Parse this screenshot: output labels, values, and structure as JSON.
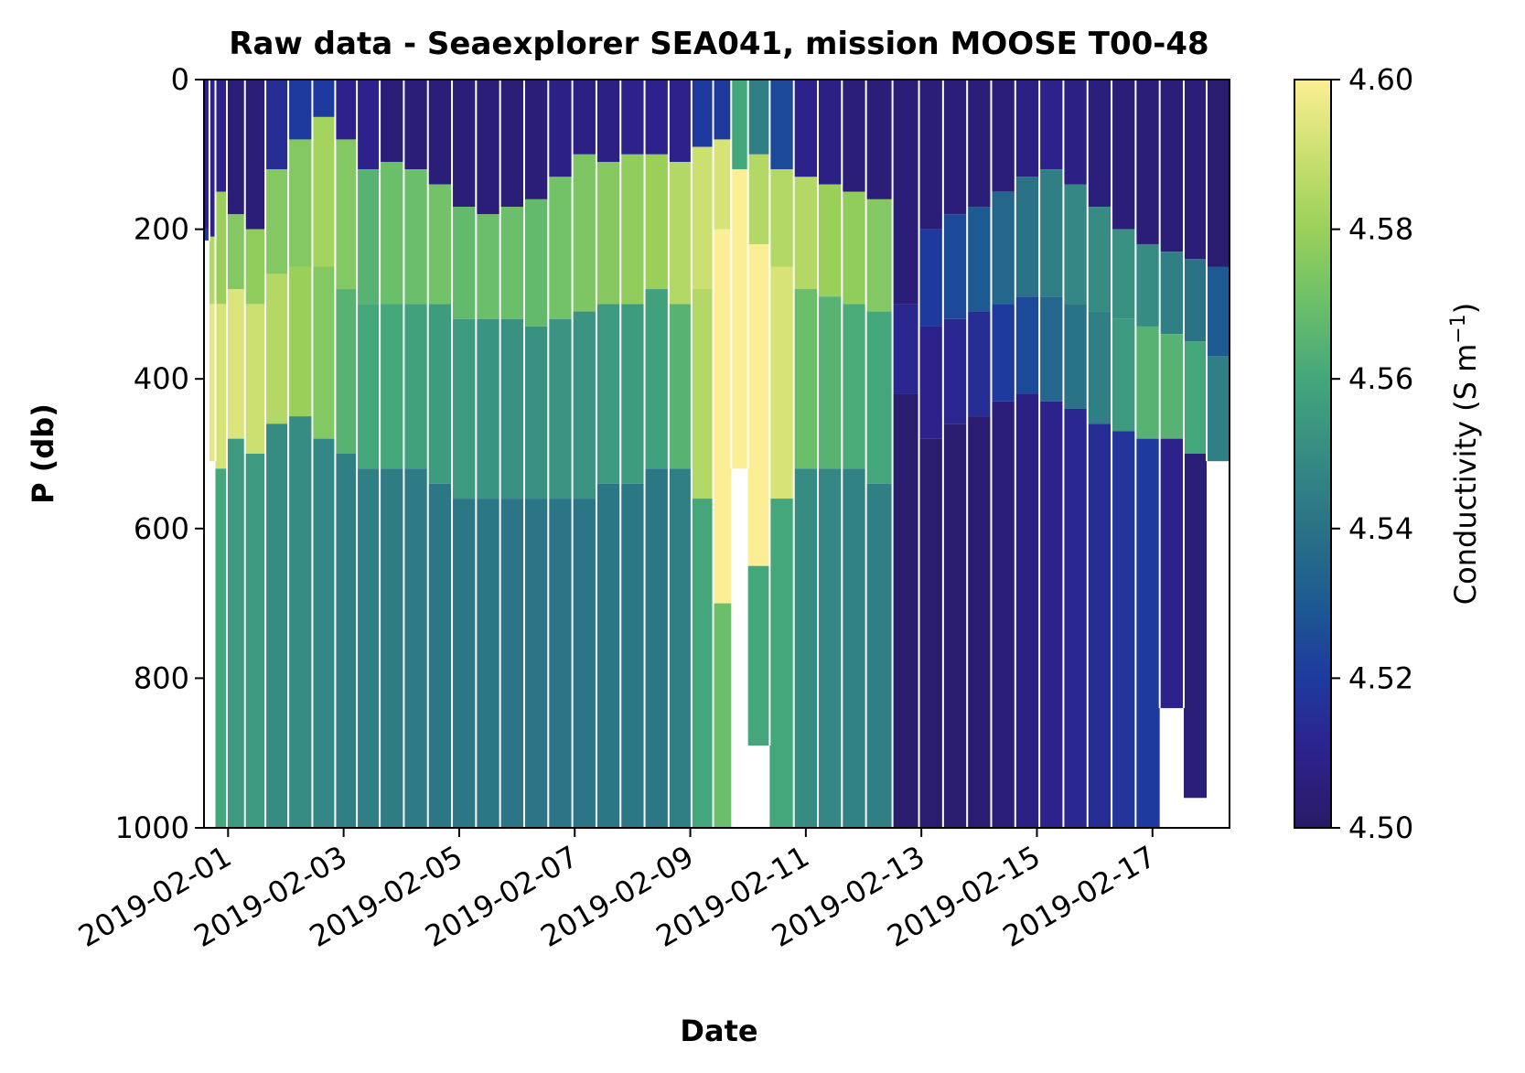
{
  "chart_data": {
    "type": "heatmap",
    "title": "Raw data - Seaexplorer SEA041, mission MOOSE T00-48",
    "xlabel": "Date",
    "ylabel": "P (db)",
    "x_range": [
      "2019-01-31T14:00",
      "2019-02-18T08:00"
    ],
    "ylim": [
      1000,
      0
    ],
    "x_ticks": [
      "2019-02-01",
      "2019-02-03",
      "2019-02-05",
      "2019-02-07",
      "2019-02-09",
      "2019-02-11",
      "2019-02-13",
      "2019-02-15",
      "2019-02-17"
    ],
    "y_ticks": [
      0,
      200,
      400,
      600,
      800,
      1000
    ],
    "colorbar": {
      "label": "Conductivity (S m",
      "label_sup": "−1",
      "label_end": ")",
      "range": [
        4.5,
        4.6
      ],
      "ticks": [
        "4.50",
        "4.52",
        "4.54",
        "4.56",
        "4.58",
        "4.60"
      ],
      "colormap": [
        "#291a66",
        "#2d228c",
        "#1e3a9e",
        "#1d5a92",
        "#2a7286",
        "#368c83",
        "#44a67b",
        "#6bbf6a",
        "#9ad05a",
        "#cbe070",
        "#fcee94"
      ]
    },
    "profiles": [
      {
        "t": "2019-01-31T15:00",
        "max_p": 215,
        "layers": [
          [
            0,
            200,
            4.51
          ],
          [
            200,
            215,
            4.52
          ]
        ]
      },
      {
        "t": "2019-01-31T17:30",
        "max_p": 510,
        "layers": [
          [
            0,
            210,
            4.51
          ],
          [
            210,
            300,
            4.585
          ],
          [
            300,
            510,
            4.595
          ]
        ]
      },
      {
        "t": "2019-01-31T20:00",
        "max_p": 1000,
        "layers": [
          [
            0,
            150,
            4.51
          ],
          [
            150,
            300,
            4.58
          ],
          [
            300,
            520,
            4.592
          ],
          [
            520,
            1000,
            4.56
          ]
        ]
      },
      {
        "t": "2019-02-01T03:00",
        "max_p": 1000,
        "layers": [
          [
            0,
            180,
            4.505
          ],
          [
            180,
            280,
            4.575
          ],
          [
            280,
            480,
            4.593
          ],
          [
            480,
            1000,
            4.555
          ]
        ]
      },
      {
        "t": "2019-02-01T11:00",
        "max_p": 1000,
        "layers": [
          [
            0,
            200,
            4.505
          ],
          [
            200,
            300,
            4.578
          ],
          [
            300,
            500,
            4.59
          ],
          [
            500,
            1000,
            4.555
          ]
        ]
      },
      {
        "t": "2019-02-01T20:00",
        "max_p": 1000,
        "layers": [
          [
            0,
            120,
            4.515
          ],
          [
            120,
            260,
            4.575
          ],
          [
            260,
            460,
            4.585
          ],
          [
            460,
            1000,
            4.55
          ]
        ]
      },
      {
        "t": "2019-02-02T06:00",
        "max_p": 1000,
        "layers": [
          [
            0,
            80,
            4.52
          ],
          [
            80,
            250,
            4.575
          ],
          [
            250,
            450,
            4.58
          ],
          [
            450,
            1000,
            4.55
          ]
        ]
      },
      {
        "t": "2019-02-02T16:00",
        "max_p": 1000,
        "layers": [
          [
            0,
            50,
            4.52
          ],
          [
            50,
            250,
            4.582
          ],
          [
            250,
            480,
            4.575
          ],
          [
            480,
            1000,
            4.548
          ]
        ]
      },
      {
        "t": "2019-02-03T01:00",
        "max_p": 1000,
        "layers": [
          [
            0,
            80,
            4.51
          ],
          [
            80,
            280,
            4.575
          ],
          [
            280,
            500,
            4.565
          ],
          [
            500,
            1000,
            4.545
          ]
        ]
      },
      {
        "t": "2019-02-03T10:00",
        "max_p": 1000,
        "layers": [
          [
            0,
            120,
            4.51
          ],
          [
            120,
            300,
            4.565
          ],
          [
            300,
            520,
            4.56
          ],
          [
            520,
            1000,
            4.545
          ]
        ]
      },
      {
        "t": "2019-02-03T20:00",
        "max_p": 1000,
        "layers": [
          [
            0,
            110,
            4.505
          ],
          [
            110,
            300,
            4.57
          ],
          [
            300,
            520,
            4.56
          ],
          [
            520,
            1000,
            4.544
          ]
        ]
      },
      {
        "t": "2019-02-04T06:00",
        "max_p": 1000,
        "layers": [
          [
            0,
            120,
            4.505
          ],
          [
            120,
            300,
            4.57
          ],
          [
            300,
            520,
            4.558
          ],
          [
            520,
            1000,
            4.543
          ]
        ]
      },
      {
        "t": "2019-02-04T16:00",
        "max_p": 1000,
        "layers": [
          [
            0,
            140,
            4.505
          ],
          [
            140,
            300,
            4.572
          ],
          [
            300,
            540,
            4.556
          ],
          [
            540,
            1000,
            4.542
          ]
        ]
      },
      {
        "t": "2019-02-05T02:00",
        "max_p": 1000,
        "layers": [
          [
            0,
            170,
            4.505
          ],
          [
            170,
            320,
            4.568
          ],
          [
            320,
            560,
            4.555
          ],
          [
            560,
            1000,
            4.542
          ]
        ]
      },
      {
        "t": "2019-02-05T12:00",
        "max_p": 1000,
        "layers": [
          [
            0,
            180,
            4.505
          ],
          [
            180,
            320,
            4.57
          ],
          [
            320,
            560,
            4.553
          ],
          [
            560,
            1000,
            4.542
          ]
        ]
      },
      {
        "t": "2019-02-05T22:00",
        "max_p": 1000,
        "layers": [
          [
            0,
            170,
            4.505
          ],
          [
            170,
            320,
            4.57
          ],
          [
            320,
            560,
            4.552
          ],
          [
            560,
            1000,
            4.541
          ]
        ]
      },
      {
        "t": "2019-02-06T08:00",
        "max_p": 1000,
        "layers": [
          [
            0,
            160,
            4.505
          ],
          [
            160,
            330,
            4.568
          ],
          [
            330,
            560,
            4.552
          ],
          [
            560,
            1000,
            4.541
          ]
        ]
      },
      {
        "t": "2019-02-06T18:00",
        "max_p": 1000,
        "layers": [
          [
            0,
            130,
            4.508
          ],
          [
            130,
            320,
            4.572
          ],
          [
            320,
            560,
            4.553
          ],
          [
            560,
            1000,
            4.541
          ]
        ]
      },
      {
        "t": "2019-02-07T04:00",
        "max_p": 1000,
        "layers": [
          [
            0,
            100,
            4.508
          ],
          [
            100,
            310,
            4.574
          ],
          [
            310,
            560,
            4.553
          ],
          [
            560,
            1000,
            4.541
          ]
        ]
      },
      {
        "t": "2019-02-07T14:00",
        "max_p": 1000,
        "layers": [
          [
            0,
            110,
            4.508
          ],
          [
            110,
            300,
            4.576
          ],
          [
            300,
            540,
            4.555
          ],
          [
            540,
            1000,
            4.542
          ]
        ]
      },
      {
        "t": "2019-02-08T00:00",
        "max_p": 1000,
        "layers": [
          [
            0,
            100,
            4.51
          ],
          [
            100,
            300,
            4.578
          ],
          [
            300,
            540,
            4.556
          ],
          [
            540,
            1000,
            4.542
          ]
        ]
      },
      {
        "t": "2019-02-08T10:00",
        "max_p": 1000,
        "layers": [
          [
            0,
            100,
            4.51
          ],
          [
            100,
            280,
            4.58
          ],
          [
            280,
            520,
            4.558
          ],
          [
            520,
            1000,
            4.542
          ]
        ]
      },
      {
        "t": "2019-02-08T20:00",
        "max_p": 1000,
        "layers": [
          [
            0,
            110,
            4.51
          ],
          [
            110,
            300,
            4.585
          ],
          [
            300,
            520,
            4.565
          ],
          [
            520,
            1000,
            4.545
          ]
        ]
      },
      {
        "t": "2019-02-09T05:00",
        "max_p": 1000,
        "layers": [
          [
            0,
            90,
            4.52
          ],
          [
            90,
            280,
            4.59
          ],
          [
            280,
            560,
            4.585
          ],
          [
            560,
            1000,
            4.56
          ]
        ]
      },
      {
        "t": "2019-02-09T14:00",
        "max_p": 1000,
        "layers": [
          [
            0,
            80,
            4.52
          ],
          [
            80,
            200,
            4.592
          ],
          [
            200,
            700,
            4.6
          ],
          [
            700,
            1000,
            4.57
          ]
        ]
      },
      {
        "t": "2019-02-09T20:00",
        "max_p": 520,
        "layers": [
          [
            0,
            120,
            4.56
          ],
          [
            120,
            520,
            4.6
          ]
        ]
      },
      {
        "t": "2019-02-10T04:00",
        "max_p": 890,
        "layers": [
          [
            0,
            100,
            4.545
          ],
          [
            100,
            220,
            4.585
          ],
          [
            220,
            650,
            4.6
          ],
          [
            650,
            890,
            4.56
          ]
        ]
      },
      {
        "t": "2019-02-10T14:00",
        "max_p": 1000,
        "layers": [
          [
            0,
            120,
            4.525
          ],
          [
            120,
            250,
            4.585
          ],
          [
            250,
            560,
            4.592
          ],
          [
            560,
            1000,
            4.56
          ]
        ]
      },
      {
        "t": "2019-02-11T00:00",
        "max_p": 1000,
        "layers": [
          [
            0,
            130,
            4.51
          ],
          [
            130,
            280,
            4.585
          ],
          [
            280,
            520,
            4.57
          ],
          [
            520,
            1000,
            4.55
          ]
        ]
      },
      {
        "t": "2019-02-11T10:00",
        "max_p": 1000,
        "layers": [
          [
            0,
            140,
            4.508
          ],
          [
            140,
            290,
            4.58
          ],
          [
            290,
            520,
            4.565
          ],
          [
            520,
            1000,
            4.548
          ]
        ]
      },
      {
        "t": "2019-02-11T20:00",
        "max_p": 1000,
        "layers": [
          [
            0,
            150,
            4.505
          ],
          [
            150,
            300,
            4.578
          ],
          [
            300,
            520,
            4.562
          ],
          [
            520,
            1000,
            4.546
          ]
        ]
      },
      {
        "t": "2019-02-12T06:00",
        "max_p": 1000,
        "layers": [
          [
            0,
            160,
            4.505
          ],
          [
            160,
            310,
            4.575
          ],
          [
            310,
            540,
            4.56
          ],
          [
            540,
            1000,
            4.545
          ]
        ]
      },
      {
        "t": "2019-02-12T18:00",
        "max_p": 1000,
        "layers": [
          [
            0,
            300,
            4.505
          ],
          [
            300,
            420,
            4.512
          ],
          [
            420,
            1000,
            4.502
          ]
        ]
      },
      {
        "t": "2019-02-13T04:00",
        "max_p": 1000,
        "layers": [
          [
            0,
            200,
            4.505
          ],
          [
            200,
            330,
            4.52
          ],
          [
            330,
            480,
            4.51
          ],
          [
            480,
            1000,
            4.502
          ]
        ]
      },
      {
        "t": "2019-02-13T14:00",
        "max_p": 1000,
        "layers": [
          [
            0,
            180,
            4.505
          ],
          [
            180,
            320,
            4.525
          ],
          [
            320,
            460,
            4.512
          ],
          [
            460,
            1000,
            4.502
          ]
        ]
      },
      {
        "t": "2019-02-14T00:00",
        "max_p": 1000,
        "layers": [
          [
            0,
            170,
            4.505
          ],
          [
            170,
            310,
            4.53
          ],
          [
            310,
            450,
            4.515
          ],
          [
            450,
            1000,
            4.503
          ]
        ]
      },
      {
        "t": "2019-02-14T10:00",
        "max_p": 1000,
        "layers": [
          [
            0,
            150,
            4.505
          ],
          [
            150,
            300,
            4.535
          ],
          [
            300,
            430,
            4.52
          ],
          [
            430,
            1000,
            4.505
          ]
        ]
      },
      {
        "t": "2019-02-14T20:00",
        "max_p": 1000,
        "layers": [
          [
            0,
            130,
            4.508
          ],
          [
            130,
            290,
            4.54
          ],
          [
            290,
            420,
            4.525
          ],
          [
            420,
            1000,
            4.508
          ]
        ]
      },
      {
        "t": "2019-02-15T06:00",
        "max_p": 1000,
        "layers": [
          [
            0,
            120,
            4.51
          ],
          [
            120,
            290,
            4.545
          ],
          [
            290,
            430,
            4.535
          ],
          [
            430,
            1000,
            4.51
          ]
        ]
      },
      {
        "t": "2019-02-15T16:00",
        "max_p": 1000,
        "layers": [
          [
            0,
            140,
            4.508
          ],
          [
            140,
            300,
            4.548
          ],
          [
            300,
            440,
            4.54
          ],
          [
            440,
            1000,
            4.512
          ]
        ]
      },
      {
        "t": "2019-02-16T02:00",
        "max_p": 1000,
        "layers": [
          [
            0,
            170,
            4.506
          ],
          [
            170,
            310,
            4.55
          ],
          [
            310,
            460,
            4.545
          ],
          [
            460,
            1000,
            4.515
          ]
        ]
      },
      {
        "t": "2019-02-16T12:00",
        "max_p": 1000,
        "layers": [
          [
            0,
            200,
            4.505
          ],
          [
            200,
            320,
            4.552
          ],
          [
            320,
            470,
            4.555
          ],
          [
            470,
            1000,
            4.518
          ]
        ]
      },
      {
        "t": "2019-02-16T22:00",
        "max_p": 1000,
        "layers": [
          [
            0,
            220,
            4.505
          ],
          [
            220,
            330,
            4.55
          ],
          [
            330,
            480,
            4.565
          ],
          [
            480,
            1000,
            4.52
          ]
        ]
      },
      {
        "t": "2019-02-17T08:00",
        "max_p": 840,
        "layers": [
          [
            0,
            230,
            4.505
          ],
          [
            230,
            340,
            4.545
          ],
          [
            340,
            480,
            4.565
          ],
          [
            480,
            840,
            4.51
          ]
        ]
      },
      {
        "t": "2019-02-17T18:00",
        "max_p": 960,
        "layers": [
          [
            0,
            240,
            4.505
          ],
          [
            240,
            350,
            4.54
          ],
          [
            350,
            500,
            4.56
          ],
          [
            500,
            960,
            4.505
          ]
        ]
      },
      {
        "t": "2019-02-18T03:00",
        "max_p": 510,
        "layers": [
          [
            0,
            250,
            4.502
          ],
          [
            250,
            370,
            4.53
          ],
          [
            370,
            510,
            4.545
          ]
        ]
      }
    ]
  }
}
